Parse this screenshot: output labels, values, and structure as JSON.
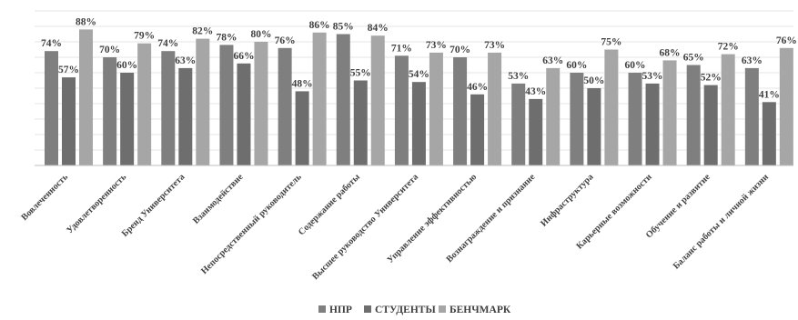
{
  "chart_data": {
    "type": "bar",
    "ylim": [
      0,
      100
    ],
    "grid": true,
    "legend_position": "bottom",
    "categories": [
      "Вовлеченность",
      "Удовлетворенность",
      "Бренд Университета",
      "Взаимодействие",
      "Непосредственный руководитель",
      "Содержание работы",
      "Высшее руководство Университета",
      "Управление эффективностью",
      "Вознаграждение и признание",
      "Инфраструктура",
      "Карьерные возможности",
      "Обучение и развитие",
      "Баланс работы и личной жизни"
    ],
    "series": [
      {
        "name": "НПР",
        "color": "#7f7f7f",
        "values": [
          74,
          70,
          74,
          78,
          76,
          85,
          71,
          70,
          53,
          60,
          60,
          65,
          63
        ]
      },
      {
        "name": "Студенты",
        "color": "#6e6e6e",
        "values": [
          57,
          60,
          63,
          66,
          48,
          55,
          54,
          46,
          43,
          50,
          53,
          52,
          41
        ]
      },
      {
        "name": "Бенчмарк",
        "color": "#a6a6a6",
        "values": [
          88,
          79,
          82,
          80,
          86,
          84,
          73,
          73,
          63,
          75,
          68,
          72,
          76
        ]
      }
    ],
    "value_suffix": "%"
  }
}
